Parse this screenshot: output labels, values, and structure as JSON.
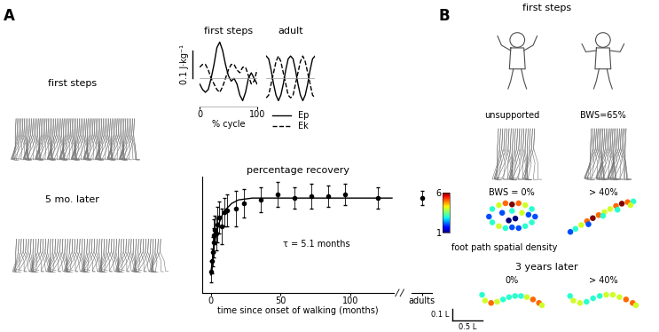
{
  "panels": {
    "A": {
      "label": "A",
      "gait": [
        "first steps",
        "5 mo. later"
      ]
    },
    "B": {
      "label": "B",
      "title": "first steps",
      "gait": [
        "unsupported",
        "BWS=65%"
      ],
      "later_title": "3 years later"
    }
  },
  "chart_data": [
    {
      "type": "line",
      "title": "first steps",
      "xlabel": "% cycle",
      "x": [
        0,
        5,
        10,
        15,
        20,
        25,
        30,
        35,
        40,
        45,
        50,
        55,
        60,
        65,
        70,
        75,
        80,
        85,
        90,
        95,
        100
      ],
      "xlim": [
        0,
        100
      ],
      "xticks": [
        0,
        100
      ],
      "ylim": [
        -0.1,
        0.15
      ],
      "tick_labels": "x",
      "baseline": 0,
      "scale_bar": {
        "value": 0.1,
        "label": "0.1 J·kg⁻¹"
      },
      "series": [
        {
          "name": "Ep",
          "color": "#000000",
          "line_style": "solid",
          "values": [
            -0.02,
            -0.04,
            -0.05,
            -0.04,
            0.0,
            0.05,
            0.11,
            0.13,
            0.1,
            0.05,
            0.01,
            -0.01,
            0.0,
            -0.02,
            -0.06,
            -0.08,
            -0.05,
            0.0,
            0.02,
            0.0,
            -0.02
          ]
        },
        {
          "name": "Ek",
          "color": "#000000",
          "line_style": "dashed",
          "values": [
            0.04,
            0.05,
            0.05,
            0.03,
            0.0,
            -0.02,
            -0.04,
            -0.05,
            -0.03,
            0.0,
            0.03,
            0.05,
            0.05,
            0.03,
            0.02,
            0.04,
            0.04,
            0.01,
            -0.02,
            -0.01,
            0.03
          ]
        }
      ]
    },
    {
      "type": "line",
      "title": "adult",
      "x": [
        0,
        5,
        10,
        15,
        20,
        25,
        30,
        35,
        40,
        45,
        50,
        55,
        60,
        65,
        70,
        75,
        80,
        85,
        90,
        95,
        100
      ],
      "xlim": [
        0,
        100
      ],
      "ylim": [
        -0.1,
        0.15
      ],
      "tick_labels": false,
      "baseline": 0,
      "legend": "upper center",
      "series": [
        {
          "name": "Ep",
          "color": "#000000",
          "line_style": "solid",
          "values": [
            0.08,
            0.07,
            0.03,
            -0.02,
            -0.06,
            -0.08,
            -0.06,
            -0.02,
            0.03,
            0.07,
            0.08,
            0.07,
            0.03,
            -0.02,
            -0.06,
            -0.08,
            -0.06,
            -0.02,
            0.03,
            0.07,
            0.08
          ]
        },
        {
          "name": "Ek",
          "color": "#000000",
          "line_style": "dashed",
          "values": [
            -0.07,
            -0.06,
            -0.02,
            0.02,
            0.06,
            0.08,
            0.06,
            0.02,
            -0.02,
            -0.06,
            -0.07,
            -0.06,
            -0.02,
            0.02,
            0.06,
            0.08,
            0.06,
            0.02,
            -0.02,
            -0.06,
            -0.07
          ]
        }
      ]
    },
    {
      "type": "scatter",
      "title": "percentage recovery",
      "xlabel": "time since onset of walking (months)",
      "annotation": "τ = 5.1 months",
      "color": "#000000",
      "marker": "o",
      "x": [
        0.5,
        1,
        1.5,
        2,
        2.5,
        3,
        4,
        5,
        6,
        8,
        10,
        12,
        18,
        24,
        36,
        48,
        60,
        72,
        84,
        96,
        120
      ],
      "values": [
        22,
        28,
        33,
        38,
        42,
        45,
        43,
        48,
        52,
        47,
        55,
        56,
        57,
        60,
        62,
        65,
        63,
        64,
        64,
        65,
        63
      ],
      "errors": [
        6,
        7,
        8,
        8,
        9,
        8,
        9,
        10,
        9,
        10,
        8,
        9,
        10,
        8,
        7,
        7,
        6,
        7,
        6,
        6,
        6
      ],
      "fit": {
        "x": [
          0,
          2,
          4,
          6,
          8,
          10,
          15,
          20,
          30,
          60,
          130
        ],
        "values": [
          20,
          34,
          43,
          49,
          53,
          56,
          60,
          62,
          63,
          63,
          63
        ]
      },
      "xlim": [
        -6,
        131
      ],
      "xticks": [
        0,
        50,
        100
      ],
      "ylim": [
        10,
        75
      ],
      "tick_labels": "x"
    },
    {
      "type": "scatter",
      "color": "#000000",
      "marker": "o",
      "categories": [
        "adults"
      ],
      "values": [
        63
      ],
      "errors": [
        4
      ],
      "ylim": [
        10,
        75
      ],
      "tick_labels": "x"
    },
    {
      "type": "density",
      "title": "BWS = 0%",
      "marker": "o",
      "x": [
        0.15,
        0.2,
        0.3,
        0.4,
        0.5,
        0.6,
        0.7,
        0.8,
        0.85,
        0.8,
        0.7,
        0.6,
        0.5,
        0.4,
        0.3,
        0.2,
        0.35,
        0.5,
        0.65,
        0.55,
        0.45,
        0.75
      ],
      "y": [
        0.5,
        0.7,
        0.8,
        0.85,
        0.82,
        0.85,
        0.8,
        0.7,
        0.5,
        0.35,
        0.25,
        0.2,
        0.22,
        0.2,
        0.25,
        0.35,
        0.6,
        0.65,
        0.6,
        0.45,
        0.4,
        0.55
      ],
      "density": [
        2,
        3,
        4,
        5,
        6,
        5,
        4,
        3,
        2,
        3,
        3,
        2,
        2,
        3,
        4,
        3,
        2,
        3,
        4,
        1,
        1,
        2
      ],
      "xlim": [
        0,
        1
      ],
      "ylim": [
        0,
        1
      ],
      "tick_labels": false,
      "colorbar": {
        "label": "foot path spatial density",
        "range": [
          1,
          6
        ],
        "ticks": [
          1,
          6
        ],
        "color": "jet"
      }
    },
    {
      "type": "density",
      "title": "> 40%",
      "marker": "o",
      "x": [
        0.05,
        0.12,
        0.2,
        0.28,
        0.36,
        0.44,
        0.52,
        0.6,
        0.68,
        0.76,
        0.84,
        0.92,
        0.3,
        0.5,
        0.7,
        0.88
      ],
      "y": [
        0.1,
        0.18,
        0.28,
        0.38,
        0.46,
        0.54,
        0.62,
        0.7,
        0.78,
        0.84,
        0.88,
        0.9,
        0.3,
        0.52,
        0.68,
        0.8
      ],
      "density": [
        2,
        3,
        4,
        5,
        6,
        5,
        4,
        4,
        5,
        6,
        5,
        3,
        2,
        3,
        3,
        4
      ],
      "xlim": [
        0,
        1
      ],
      "ylim": [
        0,
        1
      ],
      "tick_labels": false
    },
    {
      "type": "density",
      "title": "0%",
      "marker": "o",
      "x": [
        0.05,
        0.1,
        0.2,
        0.3,
        0.4,
        0.5,
        0.6,
        0.7,
        0.8,
        0.9,
        1.0,
        1.05
      ],
      "y": [
        0.12,
        0.07,
        0.05,
        0.06,
        0.08,
        0.1,
        0.11,
        0.11,
        0.1,
        0.08,
        0.05,
        0.03
      ],
      "density": [
        3,
        4,
        5,
        4,
        3,
        3,
        3,
        3,
        4,
        5,
        5,
        4
      ],
      "xlim": [
        0,
        1.1
      ],
      "ylim": [
        0,
        0.2
      ],
      "tick_labels": false,
      "scale_bars": [
        {
          "axis": "y",
          "value": 0.1,
          "label": "0.1 L"
        },
        {
          "axis": "x",
          "value": 0.5,
          "label": "0.5 L"
        }
      ]
    },
    {
      "type": "density",
      "title": "> 40%",
      "marker": "o",
      "x": [
        0.05,
        0.1,
        0.2,
        0.3,
        0.4,
        0.5,
        0.6,
        0.7,
        0.8,
        0.9,
        1.0,
        1.05
      ],
      "y": [
        0.11,
        0.07,
        0.05,
        0.06,
        0.09,
        0.11,
        0.12,
        0.12,
        0.1,
        0.08,
        0.05,
        0.03
      ],
      "density": [
        3,
        4,
        4,
        3,
        3,
        3,
        4,
        4,
        4,
        5,
        5,
        4
      ],
      "xlim": [
        0,
        1.1
      ],
      "ylim": [
        0,
        0.2
      ],
      "tick_labels": false
    }
  ]
}
